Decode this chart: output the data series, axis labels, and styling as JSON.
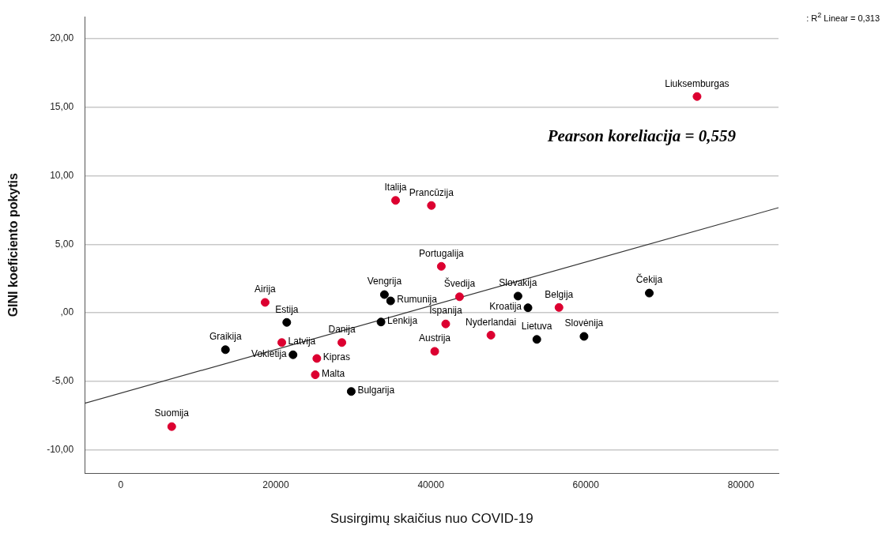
{
  "chart_data": {
    "type": "scatter",
    "xlabel": "Susirgimų skaičius nuo COVID-19",
    "ylabel": "GINI koeficiento pokytis",
    "marker": "circle",
    "grid": "y",
    "xlim": [
      -4650,
      84850
    ],
    "xticks": [
      0,
      20000,
      40000,
      60000,
      80000
    ],
    "ylim": [
      -11.7,
      21.6
    ],
    "yticks": [
      {
        "value": -10,
        "label": "-10,00"
      },
      {
        "value": -5,
        "label": "-5,00"
      },
      {
        "value": 0,
        "label": ",00"
      },
      {
        "value": 5,
        "label": "5,00"
      },
      {
        "value": 10,
        "label": "10,00"
      },
      {
        "value": 15,
        "label": "15,00"
      },
      {
        "value": 20,
        "label": "20,00"
      }
    ],
    "series": [
      {
        "color": "#dc0030",
        "x": [
          35450,
          40070,
          41350,
          18620,
          43700,
          41920,
          20770,
          28520,
          25290,
          25090,
          40500,
          56530,
          47750,
          6570,
          74340
        ],
        "values": [
          8.2,
          7.83,
          3.39,
          0.76,
          1.17,
          -0.81,
          -2.17,
          -2.17,
          -3.33,
          -4.52,
          -2.81,
          0.39,
          -1.63,
          -8.3,
          15.78
        ]
      },
      {
        "color": "#000000",
        "x": [
          34010,
          34810,
          33570,
          21410,
          13500,
          22220,
          29730,
          51240,
          52530,
          53670,
          59760,
          68180
        ],
        "values": [
          1.33,
          0.87,
          -0.67,
          -0.7,
          -2.69,
          -3.06,
          -5.74,
          1.22,
          0.37,
          -1.94,
          -1.72,
          1.44
        ]
      },
      {
        "type": "line",
        "marker": "none",
        "color": "#333333",
        "x": [
          -4650,
          84850
        ],
        "values": [
          -6.6,
          7.67
        ]
      }
    ],
    "annotations": [
      {
        "text": "Italija",
        "x": 35450,
        "y": 8.2
      },
      {
        "text": "Prancūzija",
        "x": 40070,
        "y": 7.83
      },
      {
        "text": "Portugalija",
        "x": 41350,
        "y": 3.39
      },
      {
        "text": "Airija",
        "x": 18620,
        "y": 0.76
      },
      {
        "text": "Švedija",
        "x": 43700,
        "y": 1.17
      },
      {
        "text": "Ispanija",
        "x": 41920,
        "y": -0.81
      },
      {
        "text": "Latvija",
        "x": 20770,
        "y": -2.17
      },
      {
        "text": "Danija",
        "x": 28520,
        "y": -2.17
      },
      {
        "text": "Kipras",
        "x": 25290,
        "y": -3.33
      },
      {
        "text": "Malta",
        "x": 25090,
        "y": -4.52
      },
      {
        "text": "Austrija",
        "x": 40500,
        "y": -2.81
      },
      {
        "text": "Belgija",
        "x": 56530,
        "y": 0.39
      },
      {
        "text": "Nyderlandai",
        "x": 47750,
        "y": -1.63
      },
      {
        "text": "Suomija",
        "x": 6570,
        "y": -8.3
      },
      {
        "text": "Liuksemburgas",
        "x": 74340,
        "y": 15.78
      },
      {
        "text": "Vengrija",
        "x": 34010,
        "y": 1.33
      },
      {
        "text": "Lenkija",
        "x": 33570,
        "y": -0.67
      },
      {
        "text": "Rumunija",
        "x": 34810,
        "y": 0.87
      },
      {
        "text": "Estija",
        "x": 21410,
        "y": -0.7
      },
      {
        "text": "Graikija",
        "x": 13500,
        "y": -2.69
      },
      {
        "text": "Vokietija",
        "x": 22220,
        "y": -3.06
      },
      {
        "text": "Bulgarija",
        "x": 29730,
        "y": -5.74
      },
      {
        "text": "Slovakija",
        "x": 51240,
        "y": 1.22
      },
      {
        "text": "Kroatija",
        "x": 52530,
        "y": 0.37
      },
      {
        "text": "Lietuva",
        "x": 53670,
        "y": -1.94
      },
      {
        "text": "Slovėnija",
        "x": 59760,
        "y": -1.72
      },
      {
        "text": "Čekija",
        "x": 68180,
        "y": 1.44
      },
      "Pearson koreliacija = 0,559",
      ": R$^{2}$ Linear = 0,313"
    ]
  }
}
